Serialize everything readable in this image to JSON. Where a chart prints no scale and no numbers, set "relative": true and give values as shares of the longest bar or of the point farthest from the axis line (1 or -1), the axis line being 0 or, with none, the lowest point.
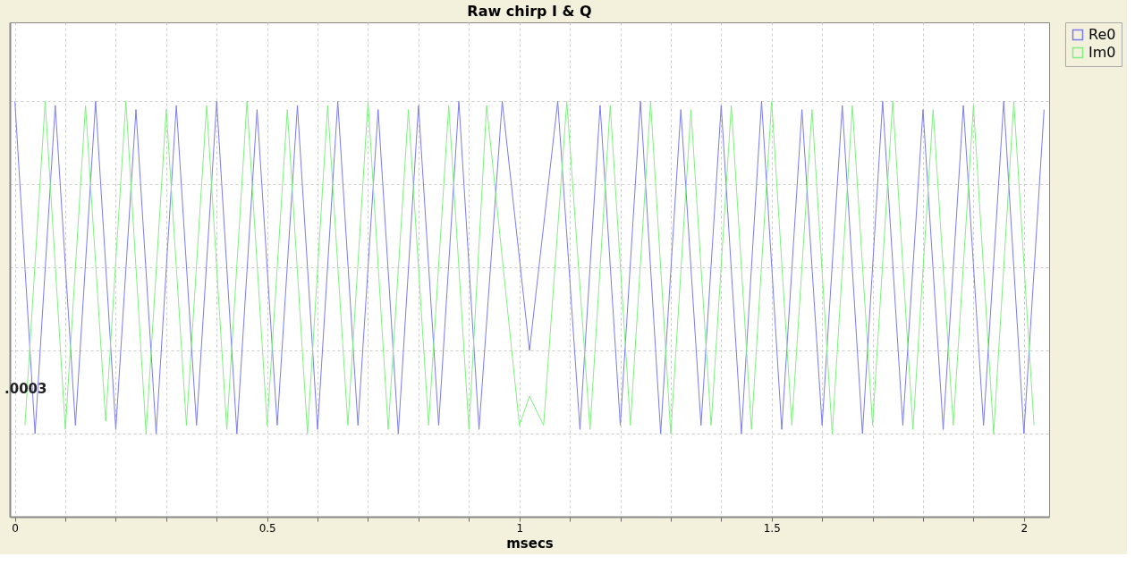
{
  "chart_data": {
    "type": "line",
    "title": "Raw chirp I & Q",
    "xlabel": "msecs",
    "relative": true,
    "xlim": [
      -0.01,
      2.05
    ],
    "xticks": [
      0,
      {
        "value": 0.1,
        "label": null
      },
      {
        "value": 0.2,
        "label": null
      },
      {
        "value": 0.3,
        "label": null
      },
      {
        "value": 0.4,
        "label": null
      },
      0.5,
      {
        "value": 0.6,
        "label": null
      },
      {
        "value": 0.7,
        "label": null
      },
      {
        "value": 0.8,
        "label": null
      },
      {
        "value": 0.9,
        "label": null
      },
      1,
      {
        "value": 1.1,
        "label": null
      },
      {
        "value": 1.2,
        "label": null
      },
      {
        "value": 1.3,
        "label": null
      },
      {
        "value": 1.4,
        "label": null
      },
      1.5,
      {
        "value": 1.6,
        "label": null
      },
      {
        "value": 1.7,
        "label": null
      },
      {
        "value": 1.8,
        "label": null
      },
      {
        "value": 1.9,
        "label": null
      },
      2
    ],
    "grid": true,
    "legend": "top right",
    "annotations": [
      ".0003"
    ],
    "series": [
      {
        "name": "Re0",
        "color": "#7b7bf0",
        "x": [
          0,
          0.04,
          0.08,
          0.12,
          0.16,
          0.2,
          0.24,
          0.28,
          0.32,
          0.36,
          0.4,
          0.44,
          0.48,
          0.52,
          0.56,
          0.6,
          0.64,
          0.68,
          0.72,
          0.76,
          0.8,
          0.84,
          0.88,
          0.92,
          0.966,
          1.02,
          1.076,
          1.12,
          1.16,
          1.2,
          1.24,
          1.28,
          1.32,
          1.36,
          1.4,
          1.44,
          1.48,
          1.52,
          1.56,
          1.6,
          1.64,
          1.68,
          1.72,
          1.76,
          1.8,
          1.84,
          1.88,
          1.92,
          1.96,
          2.0,
          2.04
        ],
        "values": [
          1.0,
          0.2,
          0.99,
          0.22,
          1.0,
          0.21,
          0.98,
          0.2,
          0.99,
          0.22,
          1.0,
          0.2,
          0.98,
          0.22,
          0.99,
          0.21,
          1.0,
          0.22,
          0.98,
          0.2,
          0.99,
          0.22,
          1.0,
          0.21,
          1.0,
          0.4,
          1.0,
          0.21,
          0.99,
          0.22,
          1.0,
          0.2,
          0.98,
          0.22,
          0.99,
          0.2,
          1.0,
          0.21,
          0.98,
          0.22,
          0.99,
          0.2,
          1.0,
          0.22,
          0.98,
          0.21,
          0.99,
          0.22,
          1.0,
          0.2,
          0.98
        ]
      },
      {
        "name": "Im0",
        "color": "#80f080",
        "x": [
          0.02,
          0.06,
          0.1,
          0.14,
          0.18,
          0.22,
          0.26,
          0.3,
          0.34,
          0.38,
          0.42,
          0.46,
          0.5,
          0.54,
          0.58,
          0.62,
          0.66,
          0.7,
          0.74,
          0.78,
          0.82,
          0.86,
          0.9,
          0.935,
          1.0,
          1.02,
          1.048,
          1.094,
          1.14,
          1.18,
          1.22,
          1.26,
          1.3,
          1.34,
          1.38,
          1.42,
          1.46,
          1.5,
          1.54,
          1.58,
          1.62,
          1.66,
          1.7,
          1.74,
          1.78,
          1.82,
          1.86,
          1.9,
          1.94,
          1.98,
          2.02
        ],
        "values": [
          0.22,
          1.0,
          0.21,
          0.99,
          0.23,
          1.0,
          0.2,
          0.98,
          0.22,
          0.99,
          0.21,
          1.0,
          0.22,
          0.98,
          0.2,
          0.99,
          0.22,
          1.0,
          0.21,
          0.98,
          0.22,
          0.99,
          0.21,
          0.99,
          0.22,
          0.29,
          0.22,
          1.0,
          0.21,
          0.99,
          0.22,
          1.0,
          0.2,
          0.98,
          0.22,
          0.99,
          0.21,
          1.0,
          0.22,
          0.98,
          0.2,
          0.99,
          0.22,
          1.0,
          0.21,
          0.98,
          0.22,
          0.99,
          0.2,
          1.0,
          0.22
        ]
      }
    ]
  }
}
